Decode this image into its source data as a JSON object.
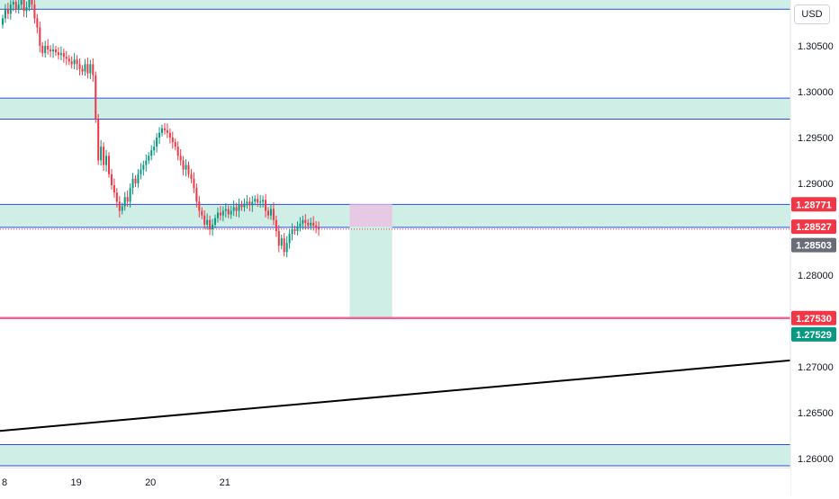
{
  "currency": "USD",
  "colors": {
    "up": "#089981",
    "down": "#f23645",
    "zone_fill": "#cfeee6",
    "zone_line": "#2a4de6",
    "target_fill": "#cfeee6",
    "stop_fill": "#e7c9e4",
    "target_line": "#f06292",
    "trend_line": "#000000"
  },
  "chart_data": {
    "type": "candlestick",
    "ylim": [
      1.259,
      1.31
    ],
    "y_ticks": [
      "1.30500",
      "1.30000",
      "1.29500",
      "1.29000",
      "1.28500",
      "1.28000",
      "1.27500",
      "1.27000",
      "1.26500",
      "1.26000"
    ],
    "y_tick_values": [
      1.305,
      1.3,
      1.295,
      1.29,
      1.285,
      1.28,
      1.275,
      1.27,
      1.265,
      1.26
    ],
    "x_ticks": [
      {
        "label": "8",
        "index": 0
      },
      {
        "label": "19",
        "index": 28
      },
      {
        "label": "20",
        "index": 56
      },
      {
        "label": "21",
        "index": 84
      }
    ],
    "x_range": [
      0,
      300
    ],
    "close": [
      1.308,
      1.309,
      1.3085,
      1.3095,
      1.3098,
      1.309,
      1.3095,
      1.3102,
      1.3088,
      1.3092,
      1.31,
      1.3095,
      1.308,
      1.307,
      1.305,
      1.3042,
      1.305,
      1.3046,
      1.3044,
      1.3046,
      1.3043,
      1.304,
      1.3042,
      1.3038,
      1.3036,
      1.3033,
      1.303,
      1.3035,
      1.303,
      1.3025,
      1.3022,
      1.303,
      1.302,
      1.303,
      1.3018,
      1.297,
      1.2925,
      1.294,
      1.292,
      1.293,
      1.291,
      1.2898,
      1.289,
      1.288,
      1.287,
      1.2875,
      1.2885,
      1.288,
      1.2895,
      1.2905,
      1.29,
      1.291,
      1.2915,
      1.292,
      1.2925,
      1.293,
      1.2936,
      1.294,
      1.295,
      1.2955,
      1.296,
      1.2958,
      1.2955,
      1.295,
      1.2945,
      1.294,
      1.293,
      1.2925,
      1.2915,
      1.292,
      1.291,
      1.2905,
      1.2895,
      1.288,
      1.287,
      1.2865,
      1.2855,
      1.286,
      1.285,
      1.2855,
      1.2862,
      1.2868,
      1.2865,
      1.287,
      1.2872,
      1.2866,
      1.287,
      1.2874,
      1.287,
      1.2877,
      1.2874,
      1.2878,
      1.288,
      1.2876,
      1.288,
      1.2883,
      1.2879,
      1.288,
      1.2882,
      1.287,
      1.2865,
      1.2872,
      1.286,
      1.2848,
      1.2832,
      1.284,
      1.2825,
      1.2835,
      1.2845,
      1.285,
      1.2848,
      1.2853,
      1.2856,
      1.286,
      1.2857,
      1.2854,
      1.2857,
      1.2854,
      1.2852,
      1.285
    ],
    "open_offset": 0.0007,
    "last_index": 119,
    "horizontal_zones": [
      {
        "top": 1.3102,
        "bottom": 1.309
      },
      {
        "top": 1.2993,
        "bottom": 1.297
      },
      {
        "top": 1.2877,
        "bottom": 1.2852
      },
      {
        "top": 1.2615,
        "bottom": 1.2592
      }
    ],
    "position_tool": {
      "x_start_index": 131,
      "x_end_index": 147,
      "entry": 1.28527,
      "stop": 1.28771,
      "target": 1.2753
    },
    "target_line": 1.2753,
    "trend_line": {
      "x0": 0,
      "y0": 1.263,
      "x1": 350,
      "y1": 1.2725
    },
    "price_labels": [
      {
        "text": "1.28771",
        "value": 1.28771,
        "color": "#f23645"
      },
      {
        "text": "1.28527",
        "value": 1.28527,
        "color": "#f23645"
      },
      {
        "text": "1.28503",
        "value": 1.28503,
        "color": "#6a6d78",
        "offset": 18
      },
      {
        "text": "1.27530",
        "value": 1.2753,
        "color": "#f23645"
      },
      {
        "text": "1.27529",
        "value": 1.27529,
        "color": "#089981",
        "offset": 18
      }
    ]
  }
}
